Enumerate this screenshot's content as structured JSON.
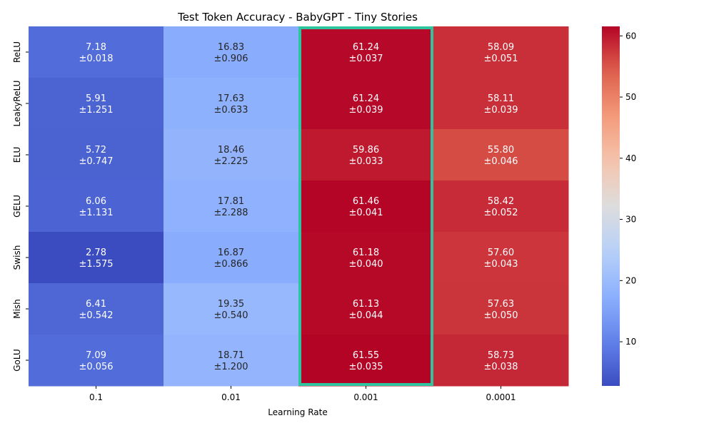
{
  "chart_data": {
    "type": "heatmap",
    "title": "Test Token Accuracy - BabyGPT - Tiny Stories",
    "xlabel": "Learning Rate",
    "ylabel": "",
    "x_categories": [
      "0.1",
      "0.01",
      "0.001",
      "0.0001"
    ],
    "y_categories": [
      "ReLU",
      "LeakyReLU",
      "ELU",
      "GELU",
      "Swish",
      "Mish",
      "GoLU"
    ],
    "values": [
      [
        7.18,
        16.83,
        61.24,
        58.09
      ],
      [
        5.91,
        17.63,
        61.24,
        58.11
      ],
      [
        5.72,
        18.46,
        59.86,
        55.8
      ],
      [
        6.06,
        17.81,
        61.46,
        58.42
      ],
      [
        2.78,
        16.87,
        61.18,
        57.6
      ],
      [
        6.41,
        19.35,
        61.13,
        57.63
      ],
      [
        7.09,
        18.71,
        61.55,
        58.73
      ]
    ],
    "errors": [
      [
        "±0.018",
        "±0.906",
        "±0.037",
        "±0.051"
      ],
      [
        "±1.251",
        "±0.633",
        "±0.039",
        "±0.039"
      ],
      [
        "±0.747",
        "±2.225",
        "±0.033",
        "±0.046"
      ],
      [
        "±1.131",
        "±2.288",
        "±0.041",
        "±0.052"
      ],
      [
        "±1.575",
        "±0.866",
        "±0.040",
        "±0.043"
      ],
      [
        "±0.542",
        "±0.540",
        "±0.044",
        "±0.050"
      ],
      [
        "±0.056",
        "±1.200",
        "±0.035",
        "±0.038"
      ]
    ],
    "colormap": "coolwarm",
    "vmin": 2.78,
    "vmax": 61.55,
    "colorbar_ticks": [
      10,
      20,
      30,
      40,
      50,
      60
    ],
    "highlight_column": "0.001",
    "highlight_color": "#2ec4a0"
  }
}
